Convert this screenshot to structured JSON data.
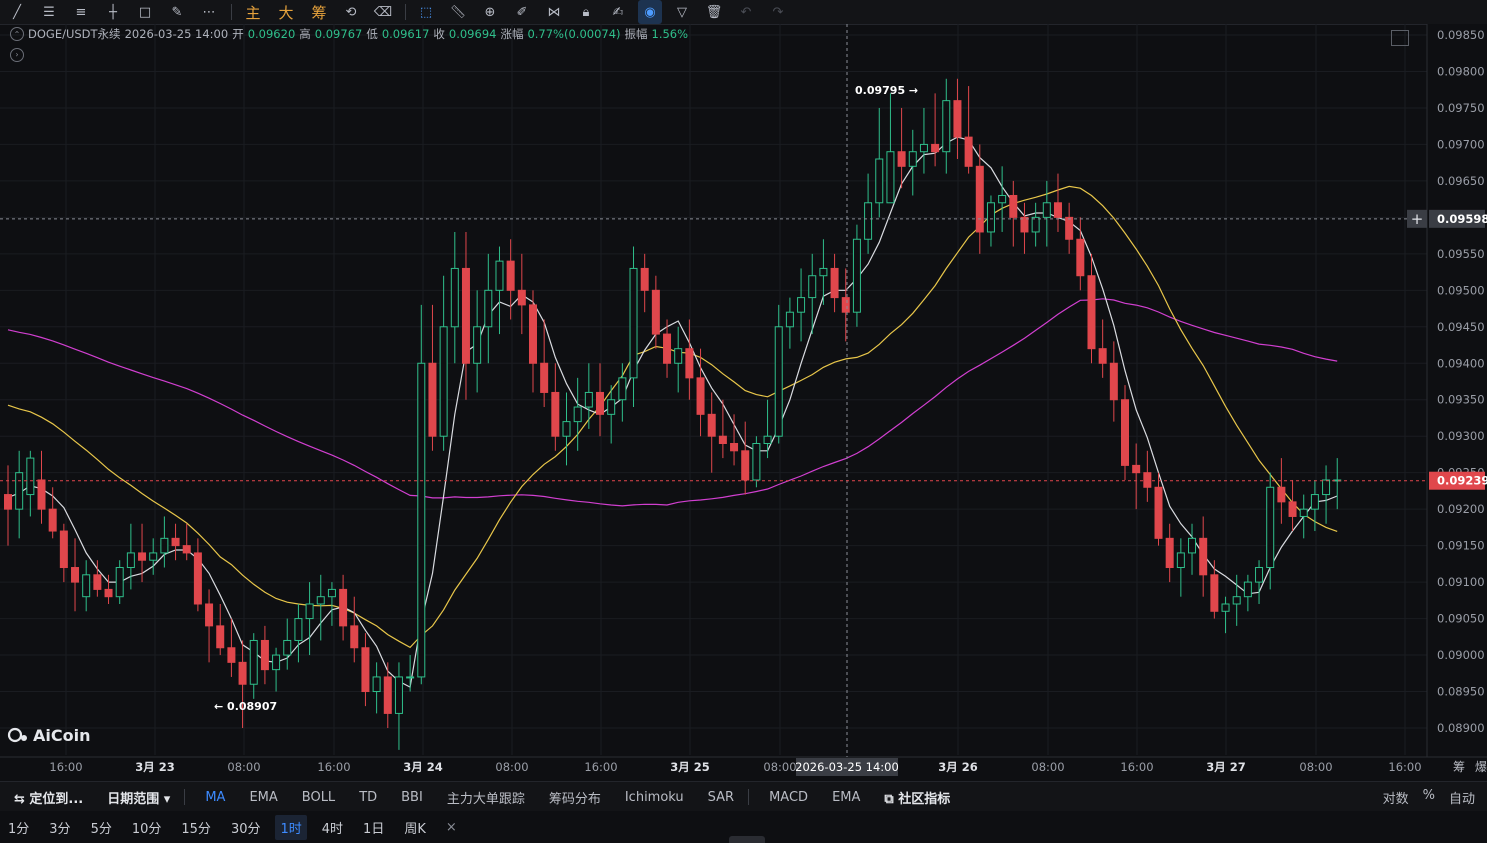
{
  "toolbar": {
    "chinese_buttons": [
      "主",
      "大",
      "筹"
    ]
  },
  "header": {
    "symbol": "DOGE/USDT永续",
    "datetime": "2026-03-25 14:00",
    "open_label": "开",
    "open": "0.09620",
    "high_label": "高",
    "high": "0.09767",
    "low_label": "低",
    "low": "0.09617",
    "close_label": "收",
    "close": "0.09694",
    "change_label": "涨幅",
    "change": "0.77%(0.00074)",
    "amplitude_label": "振幅",
    "amplitude": "1.56%"
  },
  "watermark": "AiCoin",
  "colors": {
    "up": "#2fbf8b",
    "down": "#e0474c",
    "ma_white": "#d9dbe0",
    "ma_yellow": "#e8c64a",
    "ma_magenta": "#d13fd0",
    "accent": "#3d8bff",
    "background": "#0e0f12"
  },
  "price_axis": {
    "labels": [
      "0.09850",
      "0.09800",
      "0.09750",
      "0.09700",
      "0.09650",
      "0.09600",
      "0.09550",
      "0.09500",
      "0.09450",
      "0.09400",
      "0.09350",
      "0.09300",
      "0.09250",
      "0.09200",
      "0.09150",
      "0.09100",
      "0.09050",
      "0.09000",
      "0.08950",
      "0.08900"
    ],
    "crosshair_price": "0.09598",
    "last_price": "0.09239"
  },
  "time_axis": {
    "labels": [
      "16:00",
      "3月 23",
      "08:00",
      "16:00",
      "3月 24",
      "08:00",
      "16:00",
      "3月 25",
      "08:00",
      "3月 26",
      "08:00",
      "16:00",
      "3月 27",
      "08:00",
      "16:00"
    ],
    "crosshair_time": "2026-03-25 14:00",
    "corner": [
      "筹",
      "爆"
    ]
  },
  "annotations": {
    "high_marker": "0.09795 →",
    "low_marker": "← 0.08907"
  },
  "indicator_tabs": {
    "locate": "定位到...",
    "date_range": "日期范围",
    "main": [
      "MA",
      "EMA",
      "BOLL",
      "TD",
      "BBI",
      "主力大单跟踪",
      "筹码分布",
      "Ichimoku",
      "SAR"
    ],
    "sub": [
      "MACD",
      "EMA"
    ],
    "community": "社区指标",
    "right": [
      "对数",
      "%",
      "自动"
    ]
  },
  "periods": [
    "1分",
    "3分",
    "5分",
    "10分",
    "15分",
    "30分",
    "1时",
    "4时",
    "1日",
    "周K"
  ],
  "active_period": "1时",
  "active_main_indicator": "MA",
  "chart_data": {
    "type": "candlestick",
    "interval": "1h",
    "ylim": [
      0.0888,
      0.0988
    ],
    "candles": [
      [
        0.0922,
        0.0926,
        0.0915,
        0.092
      ],
      [
        0.092,
        0.0928,
        0.0916,
        0.0925
      ],
      [
        0.0922,
        0.0928,
        0.0919,
        0.0927
      ],
      [
        0.0924,
        0.0928,
        0.0918,
        0.092
      ],
      [
        0.092,
        0.0923,
        0.0916,
        0.0917
      ],
      [
        0.0917,
        0.0918,
        0.091,
        0.0912
      ],
      [
        0.0912,
        0.0916,
        0.0906,
        0.091
      ],
      [
        0.0908,
        0.0913,
        0.0906,
        0.0911
      ],
      [
        0.0911,
        0.0913,
        0.0908,
        0.0909
      ],
      [
        0.0909,
        0.0911,
        0.0907,
        0.0908
      ],
      [
        0.0908,
        0.0913,
        0.0907,
        0.0912
      ],
      [
        0.0912,
        0.0918,
        0.0909,
        0.0914
      ],
      [
        0.0914,
        0.0918,
        0.091,
        0.0913
      ],
      [
        0.0913,
        0.0916,
        0.0911,
        0.0914
      ],
      [
        0.0914,
        0.0919,
        0.0912,
        0.0916
      ],
      [
        0.0916,
        0.0918,
        0.0913,
        0.0915
      ],
      [
        0.0915,
        0.0918,
        0.0913,
        0.0914
      ],
      [
        0.0914,
        0.0916,
        0.0906,
        0.0907
      ],
      [
        0.0907,
        0.0909,
        0.0899,
        0.0904
      ],
      [
        0.0904,
        0.0907,
        0.09,
        0.0901
      ],
      [
        0.0901,
        0.0905,
        0.0897,
        0.0899
      ],
      [
        0.0899,
        0.0902,
        0.089,
        0.0896
      ],
      [
        0.0896,
        0.0903,
        0.0894,
        0.0902
      ],
      [
        0.0902,
        0.0904,
        0.0896,
        0.0898
      ],
      [
        0.0898,
        0.0901,
        0.0895,
        0.09
      ],
      [
        0.09,
        0.0905,
        0.0898,
        0.0902
      ],
      [
        0.0902,
        0.0907,
        0.0899,
        0.0905
      ],
      [
        0.0905,
        0.091,
        0.09,
        0.0907
      ],
      [
        0.0907,
        0.0911,
        0.0902,
        0.0908
      ],
      [
        0.0908,
        0.091,
        0.0904,
        0.0909
      ],
      [
        0.0909,
        0.0911,
        0.0902,
        0.0904
      ],
      [
        0.0904,
        0.0908,
        0.0899,
        0.0901
      ],
      [
        0.0901,
        0.0903,
        0.0893,
        0.0895
      ],
      [
        0.0895,
        0.0899,
        0.0892,
        0.0897
      ],
      [
        0.0897,
        0.0899,
        0.089,
        0.0892
      ],
      [
        0.0892,
        0.0899,
        0.0887,
        0.0897
      ],
      [
        0.0897,
        0.09,
        0.0895,
        0.0897
      ],
      [
        0.0897,
        0.0948,
        0.0896,
        0.094
      ],
      [
        0.094,
        0.0948,
        0.0928,
        0.093
      ],
      [
        0.093,
        0.0952,
        0.0928,
        0.0945
      ],
      [
        0.0945,
        0.0958,
        0.094,
        0.0953
      ],
      [
        0.0953,
        0.0958,
        0.0935,
        0.094
      ],
      [
        0.094,
        0.095,
        0.0936,
        0.0945
      ],
      [
        0.0945,
        0.0955,
        0.094,
        0.095
      ],
      [
        0.095,
        0.0956,
        0.0944,
        0.0954
      ],
      [
        0.0954,
        0.0957,
        0.0946,
        0.095
      ],
      [
        0.095,
        0.0955,
        0.0944,
        0.0948
      ],
      [
        0.0948,
        0.095,
        0.0936,
        0.094
      ],
      [
        0.094,
        0.0946,
        0.0934,
        0.0936
      ],
      [
        0.0936,
        0.094,
        0.0928,
        0.093
      ],
      [
        0.093,
        0.0936,
        0.0926,
        0.0932
      ],
      [
        0.0932,
        0.0938,
        0.0928,
        0.0934
      ],
      [
        0.0934,
        0.094,
        0.0931,
        0.0936
      ],
      [
        0.0936,
        0.094,
        0.093,
        0.0933
      ],
      [
        0.0933,
        0.0937,
        0.0929,
        0.0935
      ],
      [
        0.0935,
        0.094,
        0.0932,
        0.0938
      ],
      [
        0.0938,
        0.0956,
        0.0934,
        0.0953
      ],
      [
        0.0953,
        0.0955,
        0.0947,
        0.095
      ],
      [
        0.095,
        0.0952,
        0.0942,
        0.0944
      ],
      [
        0.0944,
        0.0946,
        0.0938,
        0.094
      ],
      [
        0.094,
        0.0945,
        0.0936,
        0.0942
      ],
      [
        0.0942,
        0.0946,
        0.0935,
        0.0938
      ],
      [
        0.0938,
        0.0942,
        0.093,
        0.0933
      ],
      [
        0.0933,
        0.0936,
        0.0925,
        0.093
      ],
      [
        0.093,
        0.0935,
        0.0927,
        0.0929
      ],
      [
        0.0929,
        0.0933,
        0.0926,
        0.0928
      ],
      [
        0.0928,
        0.0932,
        0.0922,
        0.0924
      ],
      [
        0.0924,
        0.093,
        0.0923,
        0.0929
      ],
      [
        0.0929,
        0.0935,
        0.0927,
        0.093
      ],
      [
        0.093,
        0.0948,
        0.0929,
        0.0945
      ],
      [
        0.0945,
        0.0949,
        0.0942,
        0.0947
      ],
      [
        0.0947,
        0.0953,
        0.0943,
        0.0949
      ],
      [
        0.0949,
        0.0955,
        0.0944,
        0.0952
      ],
      [
        0.0952,
        0.0957,
        0.0948,
        0.0953
      ],
      [
        0.0953,
        0.0955,
        0.0947,
        0.0949
      ],
      [
        0.0949,
        0.0953,
        0.0943,
        0.0947
      ],
      [
        0.0947,
        0.0959,
        0.0945,
        0.0957
      ],
      [
        0.0957,
        0.0966,
        0.0955,
        0.0962
      ],
      [
        0.0962,
        0.0975,
        0.096,
        0.0968
      ],
      [
        0.0962,
        0.0977,
        0.0962,
        0.0969
      ],
      [
        0.0969,
        0.0975,
        0.0964,
        0.0967
      ],
      [
        0.0967,
        0.0972,
        0.0963,
        0.0969
      ],
      [
        0.0969,
        0.0975,
        0.0966,
        0.097
      ],
      [
        0.097,
        0.0977,
        0.0967,
        0.0969
      ],
      [
        0.0969,
        0.0979,
        0.0966,
        0.0976
      ],
      [
        0.0976,
        0.0979,
        0.0968,
        0.0971
      ],
      [
        0.0971,
        0.0978,
        0.0966,
        0.0967
      ],
      [
        0.0967,
        0.097,
        0.0955,
        0.0958
      ],
      [
        0.0958,
        0.0963,
        0.0956,
        0.0962
      ],
      [
        0.0962,
        0.0967,
        0.0958,
        0.0963
      ],
      [
        0.0963,
        0.0965,
        0.0956,
        0.096
      ],
      [
        0.096,
        0.0962,
        0.0955,
        0.0958
      ],
      [
        0.0958,
        0.0962,
        0.0956,
        0.096
      ],
      [
        0.096,
        0.0965,
        0.0956,
        0.0962
      ],
      [
        0.0962,
        0.0966,
        0.0958,
        0.096
      ],
      [
        0.096,
        0.0962,
        0.0955,
        0.0957
      ],
      [
        0.0957,
        0.096,
        0.095,
        0.0952
      ],
      [
        0.0952,
        0.0955,
        0.094,
        0.0942
      ],
      [
        0.0942,
        0.0946,
        0.0938,
        0.094
      ],
      [
        0.094,
        0.0943,
        0.0932,
        0.0935
      ],
      [
        0.0935,
        0.0937,
        0.0924,
        0.0926
      ],
      [
        0.0926,
        0.0929,
        0.092,
        0.0925
      ],
      [
        0.0925,
        0.0928,
        0.0921,
        0.0923
      ],
      [
        0.0923,
        0.0925,
        0.0915,
        0.0916
      ],
      [
        0.0916,
        0.0918,
        0.091,
        0.0912
      ],
      [
        0.0912,
        0.0916,
        0.0908,
        0.0914
      ],
      [
        0.0914,
        0.0918,
        0.0911,
        0.0916
      ],
      [
        0.0916,
        0.0919,
        0.0908,
        0.0911
      ],
      [
        0.0911,
        0.0913,
        0.0905,
        0.0906
      ],
      [
        0.0906,
        0.0908,
        0.0903,
        0.0907
      ],
      [
        0.0907,
        0.0911,
        0.0904,
        0.0908
      ],
      [
        0.0908,
        0.0911,
        0.0906,
        0.091
      ],
      [
        0.091,
        0.0913,
        0.0907,
        0.0912
      ],
      [
        0.0912,
        0.0925,
        0.0909,
        0.0923
      ],
      [
        0.0923,
        0.0927,
        0.0918,
        0.0921
      ],
      [
        0.0921,
        0.0924,
        0.0917,
        0.0919
      ],
      [
        0.0919,
        0.0922,
        0.0916,
        0.092
      ],
      [
        0.092,
        0.0924,
        0.0917,
        0.0922
      ],
      [
        0.0922,
        0.0926,
        0.0918,
        0.0924
      ],
      [
        0.0924,
        0.0927,
        0.092,
        0.0924
      ]
    ]
  }
}
